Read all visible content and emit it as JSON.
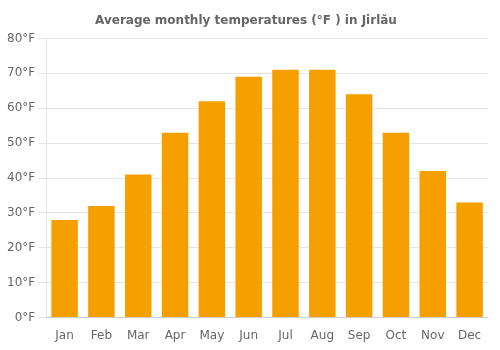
{
  "chart_data": {
    "type": "bar",
    "title": "Average monthly temperatures (°F ) in Jirlău",
    "categories": [
      "Jan",
      "Feb",
      "Mar",
      "Apr",
      "May",
      "Jun",
      "Jul",
      "Aug",
      "Sep",
      "Oct",
      "Nov",
      "Dec"
    ],
    "values": [
      28,
      32,
      41,
      53,
      62,
      69,
      71,
      71,
      64,
      53,
      42,
      33
    ],
    "color": "#F5A000",
    "ylim": [
      0,
      80
    ],
    "yticks": [
      {
        "value": 0,
        "label": "0°F"
      },
      {
        "value": 10,
        "label": "10°F"
      },
      {
        "value": 20,
        "label": "20°F"
      },
      {
        "value": 30,
        "label": "30°F"
      },
      {
        "value": 40,
        "label": "40°F"
      },
      {
        "value": 50,
        "label": "50°F"
      },
      {
        "value": 60,
        "label": "60°F"
      },
      {
        "value": 70,
        "label": "70°F"
      },
      {
        "value": 80,
        "label": "80°F"
      }
    ],
    "grid": true
  }
}
